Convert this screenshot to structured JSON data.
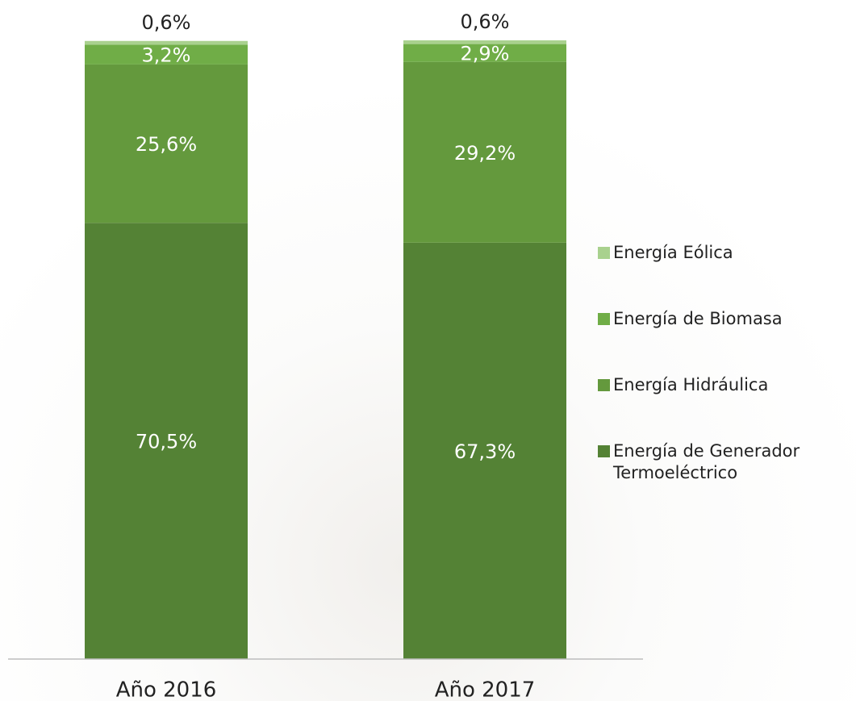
{
  "chart_data": {
    "type": "stacked_bar",
    "categories": [
      "Año 2016",
      "Año 2017"
    ],
    "ylim": [
      0,
      100
    ],
    "series": [
      {
        "name": "Energía de Generador Termoeléctrico",
        "color": "#548235",
        "values": [
          70.5,
          67.3
        ],
        "value_labels": [
          "70,5%",
          "67,3%"
        ]
      },
      {
        "name": "Energía Hidráulica",
        "color": "#64993d",
        "values": [
          25.6,
          29.2
        ],
        "value_labels": [
          "25,6%",
          "29,2%"
        ]
      },
      {
        "name": "Energía de Biomasa",
        "color": "#70ad47",
        "values": [
          3.2,
          2.9
        ],
        "value_labels": [
          "3,2%",
          "2,9%"
        ]
      },
      {
        "name": "Energía Eólica",
        "color": "#a9d18e",
        "values": [
          0.6,
          0.6
        ],
        "value_labels": [
          "0,6%",
          "0,6%"
        ]
      }
    ]
  }
}
